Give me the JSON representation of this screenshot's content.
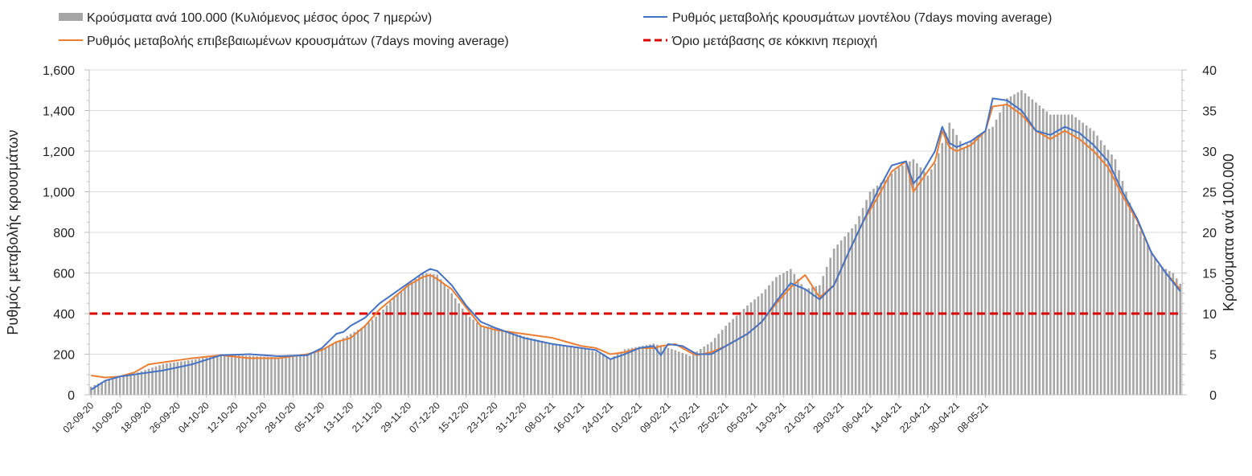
{
  "chart_data": {
    "type": "bar+line",
    "legend": {
      "bars": "Κρούσματα ανά 100.000 (Κυλιόμενος μέσος όρος 7 ημερών)",
      "model": "Ρυθμός μεταβολής κρουσμάτων μοντέλου (7days moving average)",
      "confirmed": "Ρυθμός μεταβολής επιβεβαιωμένων κρουσμάτων (7days moving average)",
      "threshold": "Όριο μετάβασης σε κόκκινη περιοχή"
    },
    "y_left": {
      "label": "Ρυθμός μεταβολής κρουσμάτων",
      "range": [
        0,
        1600
      ],
      "ticks": [
        "0",
        "200",
        "400",
        "600",
        "800",
        "1,000",
        "1,200",
        "1,400",
        "1,600"
      ]
    },
    "y_right": {
      "label": "Κρούσματα ανά 100.000",
      "range": [
        0,
        40
      ],
      "ticks": [
        "0",
        "5",
        "10",
        "15",
        "20",
        "25",
        "30",
        "35",
        "40"
      ]
    },
    "x_tick_labels": [
      "02-09-20",
      "10-09-20",
      "18-09-20",
      "26-09-20",
      "04-10-20",
      "12-10-20",
      "20-10-20",
      "28-10-20",
      "05-11-20",
      "13-11-20",
      "21-11-20",
      "29-11-20",
      "07-12-20",
      "15-12-20",
      "23-12-20",
      "31-12-20",
      "08-01-21",
      "16-01-21",
      "24-01-21",
      "01-02-21",
      "09-02-21",
      "17-02-21",
      "25-02-21",
      "05-03-21",
      "13-03-21",
      "21-03-21",
      "29-03-21",
      "06-04-21",
      "14-04-21",
      "22-04-21",
      "30-04-21",
      "08-05-21"
    ],
    "days": 258,
    "threshold_value": 400,
    "bar_keypoints": [
      [
        0,
        1.0
      ],
      [
        4,
        1.8
      ],
      [
        8,
        2.2
      ],
      [
        12,
        2.6
      ],
      [
        20,
        3.8
      ],
      [
        28,
        4.3
      ],
      [
        36,
        4.9
      ],
      [
        44,
        4.8
      ],
      [
        52,
        4.6
      ],
      [
        60,
        5.0
      ],
      [
        66,
        6.0
      ],
      [
        72,
        7.5
      ],
      [
        76,
        8.5
      ],
      [
        80,
        10.0
      ],
      [
        84,
        12.0
      ],
      [
        88,
        13.5
      ],
      [
        92,
        15.0
      ],
      [
        96,
        14.8
      ],
      [
        100,
        12.5
      ],
      [
        104,
        10.0
      ],
      [
        108,
        8.5
      ],
      [
        112,
        8.3
      ],
      [
        120,
        7.2
      ],
      [
        128,
        6.3
      ],
      [
        136,
        5.7
      ],
      [
        140,
        5.3
      ],
      [
        144,
        4.5
      ],
      [
        148,
        5.6
      ],
      [
        156,
        6.3
      ],
      [
        162,
        5.5
      ],
      [
        166,
        4.8
      ],
      [
        172,
        6.5
      ],
      [
        176,
        8.5
      ],
      [
        182,
        11.0
      ],
      [
        186,
        12.5
      ],
      [
        190,
        14.5
      ],
      [
        194,
        15.5
      ],
      [
        198,
        13.0
      ],
      [
        202,
        13.5
      ],
      [
        206,
        18.0
      ],
      [
        212,
        21.0
      ],
      [
        216,
        25.0
      ],
      [
        220,
        26.5
      ],
      [
        224,
        28.0
      ],
      [
        228,
        29.0
      ],
      [
        232,
        27.0
      ],
      [
        234,
        28.5
      ],
      [
        238,
        33.5
      ],
      [
        242,
        30.5
      ],
      [
        246,
        32.0
      ],
      [
        250,
        33.0
      ],
      [
        254,
        36.5
      ],
      [
        258,
        37.5
      ],
      [
        262,
        36.0
      ],
      [
        266,
        34.5
      ],
      [
        272,
        34.5
      ],
      [
        278,
        32.5
      ],
      [
        284,
        29.0
      ],
      [
        290,
        21.0
      ],
      [
        296,
        16.0
      ],
      [
        300,
        15.0
      ],
      [
        303,
        13.0
      ]
    ],
    "model_keypoints": [
      [
        0,
        25
      ],
      [
        4,
        70
      ],
      [
        8,
        90
      ],
      [
        12,
        100
      ],
      [
        20,
        120
      ],
      [
        28,
        150
      ],
      [
        36,
        195
      ],
      [
        44,
        200
      ],
      [
        52,
        190
      ],
      [
        60,
        195
      ],
      [
        64,
        230
      ],
      [
        68,
        300
      ],
      [
        70,
        310
      ],
      [
        72,
        340
      ],
      [
        76,
        380
      ],
      [
        80,
        450
      ],
      [
        84,
        500
      ],
      [
        88,
        550
      ],
      [
        92,
        600
      ],
      [
        94,
        620
      ],
      [
        96,
        610
      ],
      [
        100,
        540
      ],
      [
        104,
        440
      ],
      [
        108,
        360
      ],
      [
        112,
        330
      ],
      [
        120,
        280
      ],
      [
        128,
        250
      ],
      [
        136,
        230
      ],
      [
        140,
        220
      ],
      [
        144,
        175
      ],
      [
        148,
        200
      ],
      [
        152,
        230
      ],
      [
        156,
        240
      ],
      [
        158,
        195
      ],
      [
        160,
        250
      ],
      [
        164,
        240
      ],
      [
        168,
        200
      ],
      [
        172,
        200
      ],
      [
        176,
        240
      ],
      [
        182,
        300
      ],
      [
        186,
        360
      ],
      [
        190,
        460
      ],
      [
        194,
        550
      ],
      [
        198,
        520
      ],
      [
        202,
        470
      ],
      [
        206,
        540
      ],
      [
        210,
        700
      ],
      [
        214,
        850
      ],
      [
        218,
        1000
      ],
      [
        222,
        1130
      ],
      [
        226,
        1150
      ],
      [
        228,
        1040
      ],
      [
        230,
        1080
      ],
      [
        234,
        1200
      ],
      [
        236,
        1320
      ],
      [
        238,
        1240
      ],
      [
        240,
        1220
      ],
      [
        244,
        1250
      ],
      [
        248,
        1300
      ],
      [
        250,
        1460
      ],
      [
        254,
        1450
      ],
      [
        258,
        1400
      ],
      [
        262,
        1300
      ],
      [
        266,
        1280
      ],
      [
        270,
        1320
      ],
      [
        274,
        1290
      ],
      [
        278,
        1230
      ],
      [
        282,
        1150
      ],
      [
        286,
        1000
      ],
      [
        290,
        870
      ],
      [
        294,
        700
      ],
      [
        298,
        600
      ],
      [
        302,
        510
      ]
    ],
    "confirmed_keypoints": [
      [
        0,
        95
      ],
      [
        4,
        85
      ],
      [
        8,
        90
      ],
      [
        12,
        110
      ],
      [
        16,
        150
      ],
      [
        20,
        160
      ],
      [
        28,
        180
      ],
      [
        36,
        195
      ],
      [
        44,
        180
      ],
      [
        52,
        180
      ],
      [
        60,
        200
      ],
      [
        64,
        220
      ],
      [
        68,
        260
      ],
      [
        72,
        280
      ],
      [
        76,
        340
      ],
      [
        80,
        420
      ],
      [
        84,
        480
      ],
      [
        88,
        540
      ],
      [
        92,
        580
      ],
      [
        94,
        590
      ],
      [
        96,
        570
      ],
      [
        100,
        520
      ],
      [
        104,
        430
      ],
      [
        108,
        340
      ],
      [
        112,
        320
      ],
      [
        120,
        300
      ],
      [
        128,
        280
      ],
      [
        136,
        240
      ],
      [
        140,
        230
      ],
      [
        144,
        200
      ],
      [
        148,
        210
      ],
      [
        152,
        230
      ],
      [
        156,
        230
      ],
      [
        158,
        240
      ],
      [
        162,
        250
      ],
      [
        166,
        210
      ],
      [
        168,
        195
      ],
      [
        172,
        210
      ],
      [
        176,
        240
      ],
      [
        182,
        300
      ],
      [
        186,
        360
      ],
      [
        190,
        450
      ],
      [
        194,
        530
      ],
      [
        198,
        590
      ],
      [
        202,
        480
      ],
      [
        206,
        540
      ],
      [
        210,
        700
      ],
      [
        214,
        850
      ],
      [
        218,
        970
      ],
      [
        222,
        1100
      ],
      [
        226,
        1150
      ],
      [
        228,
        1000
      ],
      [
        230,
        1050
      ],
      [
        234,
        1150
      ],
      [
        236,
        1300
      ],
      [
        238,
        1220
      ],
      [
        240,
        1200
      ],
      [
        244,
        1230
      ],
      [
        248,
        1300
      ],
      [
        250,
        1420
      ],
      [
        254,
        1430
      ],
      [
        258,
        1380
      ],
      [
        262,
        1300
      ],
      [
        266,
        1260
      ],
      [
        270,
        1300
      ],
      [
        274,
        1260
      ],
      [
        278,
        1200
      ],
      [
        282,
        1120
      ],
      [
        286,
        980
      ],
      [
        290,
        860
      ],
      [
        294,
        700
      ],
      [
        298,
        600
      ],
      [
        302,
        520
      ]
    ],
    "colors": {
      "bars": "#a6a6a6",
      "model": "#4472c4",
      "confirmed": "#ed7d31",
      "threshold": "#e00000",
      "grid": "#d9d9d9",
      "axis": "#bfbfbf"
    }
  }
}
